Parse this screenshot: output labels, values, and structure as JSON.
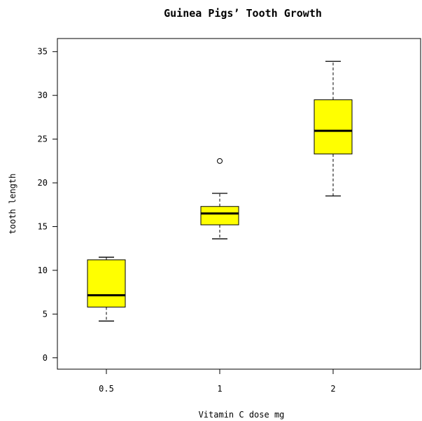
{
  "chart_data": {
    "type": "boxplot",
    "title": "Guinea Pigs’ Tooth Growth",
    "xlabel": "Vitamin C dose mg",
    "ylabel": "tooth length",
    "ylim": [
      -1.3,
      36.5
    ],
    "yticks": [
      0,
      5,
      10,
      15,
      20,
      25,
      30,
      35
    ],
    "categories": [
      "0.5",
      "1",
      "2"
    ],
    "box_color": "#ffff00",
    "boxes": [
      {
        "category": "0.5",
        "min": 4.2,
        "q1": 5.8,
        "median": 7.15,
        "q3": 11.2,
        "max": 11.5,
        "outliers": []
      },
      {
        "category": "1",
        "min": 13.6,
        "q1": 15.2,
        "median": 16.5,
        "q3": 17.3,
        "max": 18.8,
        "outliers": [
          22.5
        ]
      },
      {
        "category": "2",
        "min": 18.5,
        "q1": 23.3,
        "median": 25.95,
        "q3": 29.5,
        "max": 33.9,
        "outliers": []
      }
    ],
    "grid": false,
    "legend": "none"
  }
}
